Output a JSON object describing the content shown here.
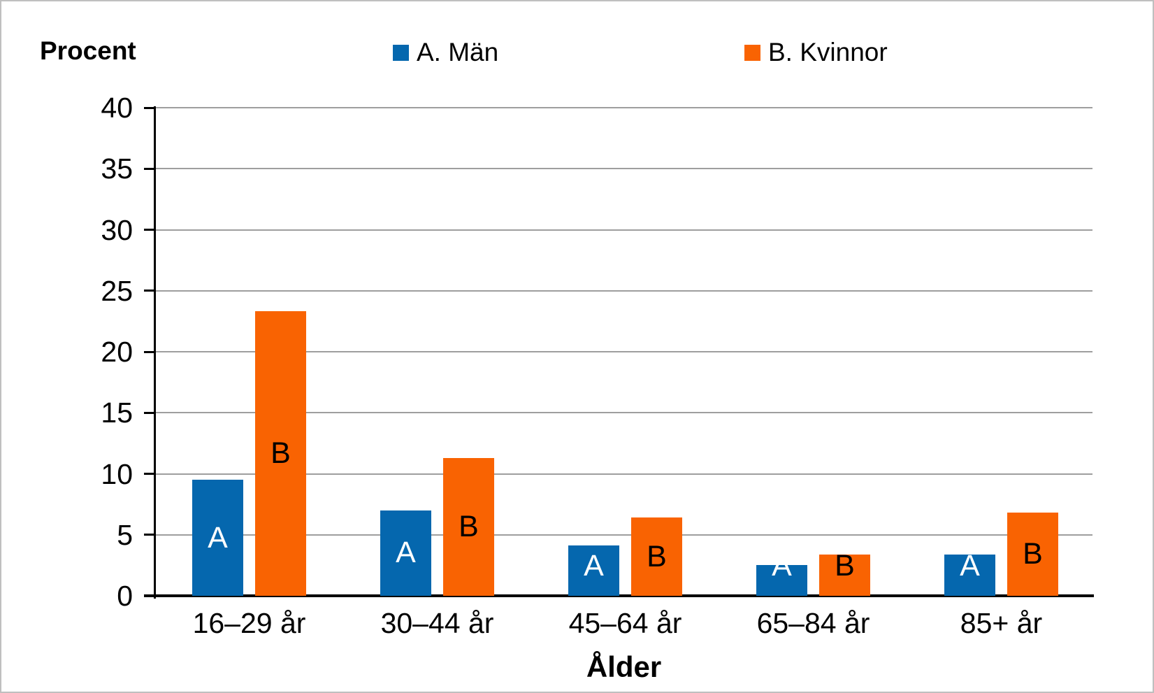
{
  "chart_data": {
    "type": "bar",
    "title": "",
    "categories": [
      "16–29 år",
      "30–44 år",
      "45–64 år",
      "65–84 år",
      "85+ år"
    ],
    "series": [
      {
        "name": "A. Män",
        "bar_letter": "A",
        "color": "#0567ae",
        "label_color": "#ffffff",
        "values": [
          9.5,
          7.0,
          4.1,
          2.5,
          3.4
        ]
      },
      {
        "name": "B. Kvinnor",
        "bar_letter": "B",
        "color": "#f96302",
        "label_color": "#000000",
        "values": [
          23.3,
          11.3,
          6.4,
          3.4,
          6.8
        ]
      }
    ],
    "xlabel": "Ålder",
    "ylabel": "Procent",
    "ylim": [
      0,
      40
    ],
    "ytick_step": 5,
    "yticks": [
      0,
      5,
      10,
      15,
      20,
      25,
      30,
      35,
      40
    ],
    "grid": true,
    "legend_position": "top"
  },
  "colors": {
    "grid": "#9e9e9e",
    "axis": "#000000",
    "series_a": "#0567ae",
    "series_b": "#f96302"
  }
}
